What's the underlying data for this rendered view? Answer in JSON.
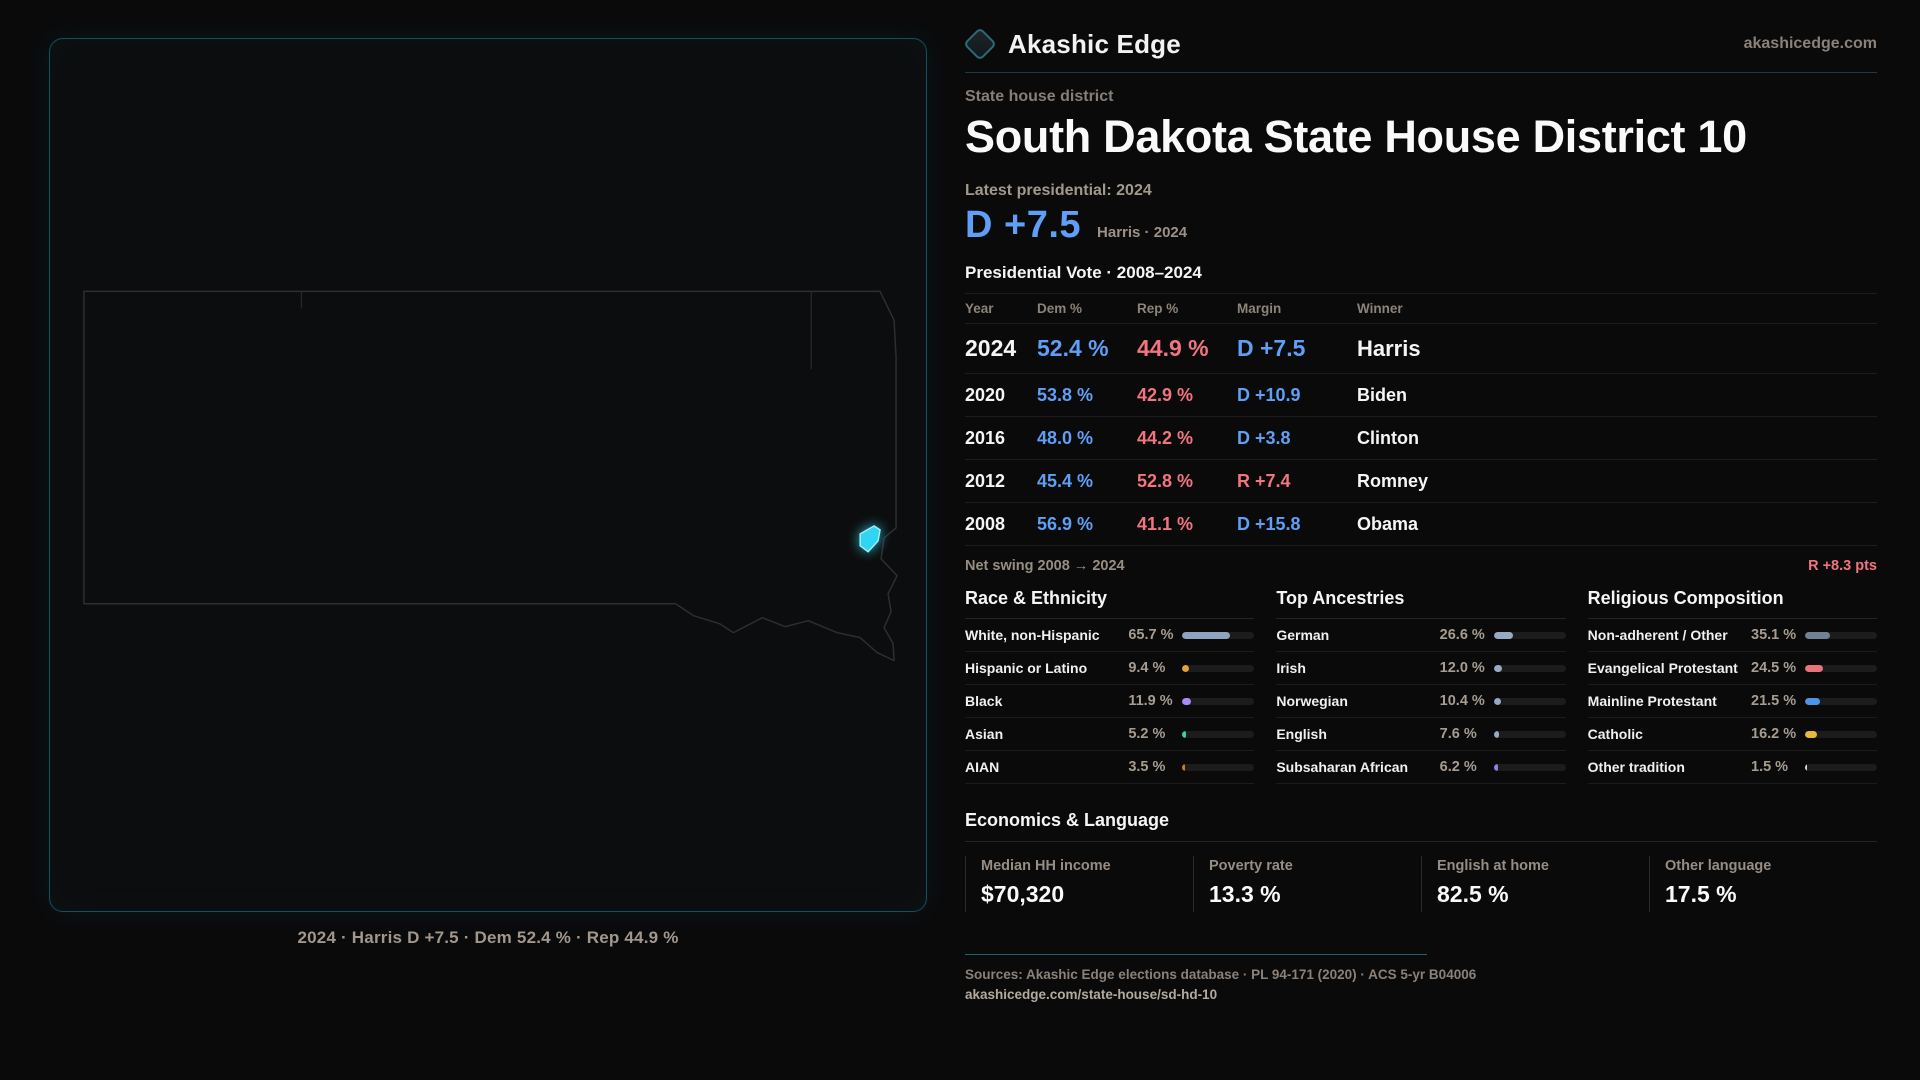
{
  "brand": {
    "name": "Akashic Edge",
    "domain": "akashicedge.com"
  },
  "page": {
    "kicker": "State house district",
    "title": "South Dakota State House District 10"
  },
  "latest": {
    "label": "Latest presidential: 2024",
    "margin": "D +7.5",
    "sub": "Harris · 2024"
  },
  "vote_table": {
    "title": "Presidential Vote · 2008–2024",
    "columns": [
      "Year",
      "Dem %",
      "Rep %",
      "Margin",
      "Winner"
    ],
    "rows": [
      {
        "year": "2024",
        "dem": "52.4 %",
        "rep": "44.9 %",
        "margin": "D +7.5",
        "margin_party": "D",
        "winner": "Harris"
      },
      {
        "year": "2020",
        "dem": "53.8 %",
        "rep": "42.9 %",
        "margin": "D +10.9",
        "margin_party": "D",
        "winner": "Biden"
      },
      {
        "year": "2016",
        "dem": "48.0 %",
        "rep": "44.2 %",
        "margin": "D +3.8",
        "margin_party": "D",
        "winner": "Clinton"
      },
      {
        "year": "2012",
        "dem": "45.4 %",
        "rep": "52.8 %",
        "margin": "R +7.4",
        "margin_party": "R",
        "winner": "Romney"
      },
      {
        "year": "2008",
        "dem": "56.9 %",
        "rep": "41.1 %",
        "margin": "D +15.8",
        "margin_party": "D",
        "winner": "Obama"
      }
    ]
  },
  "net_swing": {
    "label": "Net swing 2008 → 2024",
    "value": "R +8.3 pts",
    "party": "R"
  },
  "demographics": {
    "race": {
      "title": "Race & Ethnicity",
      "items": [
        {
          "label": "White, non-Hispanic",
          "value": "65.7 %",
          "pct": 65.7,
          "color": "#8da3bf"
        },
        {
          "label": "Hispanic or Latino",
          "value": "9.4 %",
          "pct": 9.4,
          "color": "#e2a33c"
        },
        {
          "label": "Black",
          "value": "11.9 %",
          "pct": 11.9,
          "color": "#a78bfa"
        },
        {
          "label": "Asian",
          "value": "5.2 %",
          "pct": 5.2,
          "color": "#35d3a0"
        },
        {
          "label": "AIAN",
          "value": "3.5 %",
          "pct": 3.5,
          "color": "#cf7a22"
        }
      ]
    },
    "ancestries": {
      "title": "Top Ancestries",
      "items": [
        {
          "label": "German",
          "value": "26.6 %",
          "pct": 26.6,
          "color": "#96aac6"
        },
        {
          "label": "Irish",
          "value": "12.0 %",
          "pct": 12.0,
          "color": "#96aac6"
        },
        {
          "label": "Norwegian",
          "value": "10.4 %",
          "pct": 10.4,
          "color": "#96aac6"
        },
        {
          "label": "English",
          "value": "7.6 %",
          "pct": 7.6,
          "color": "#96aac6"
        },
        {
          "label": "Subsaharan African",
          "value": "6.2 %",
          "pct": 6.2,
          "color": "#8d80f2"
        }
      ]
    },
    "religion": {
      "title": "Religious Composition",
      "items": [
        {
          "label": "Non-adherent / Other",
          "value": "35.1 %",
          "pct": 35.1,
          "color": "#708096"
        },
        {
          "label": "Evangelical Protestant",
          "value": "24.5 %",
          "pct": 24.5,
          "color": "#e7737c"
        },
        {
          "label": "Mainline Protestant",
          "value": "21.5 %",
          "pct": 21.5,
          "color": "#4f93e8"
        },
        {
          "label": "Catholic",
          "value": "16.2 %",
          "pct": 16.2,
          "color": "#e8b73c"
        },
        {
          "label": "Other tradition",
          "value": "1.5 %",
          "pct": 1.5,
          "color": "#d8d8d8"
        }
      ]
    }
  },
  "economics": {
    "title": "Economics & Language",
    "stats": [
      {
        "label": "Median HH income",
        "value": "$70,320"
      },
      {
        "label": "Poverty rate",
        "value": "13.3 %"
      },
      {
        "label": "English at home",
        "value": "82.5 %"
      },
      {
        "label": "Other language",
        "value": "17.5 %"
      }
    ]
  },
  "map": {
    "caption": "2024 · Harris D +7.5 · Dem 52.4 % · Rep 44.9 %"
  },
  "footer": {
    "sources": "Sources: Akashic Edge elections database · PL 94-171 (2020) · ACS 5-yr B04006",
    "url": "akashicedge.com/state-house/sd-hd-10"
  },
  "colors": {
    "accent_cyan": "#2fd5f1",
    "dem_blue": "#5f9ff5",
    "rep_red": "#f2747e"
  }
}
